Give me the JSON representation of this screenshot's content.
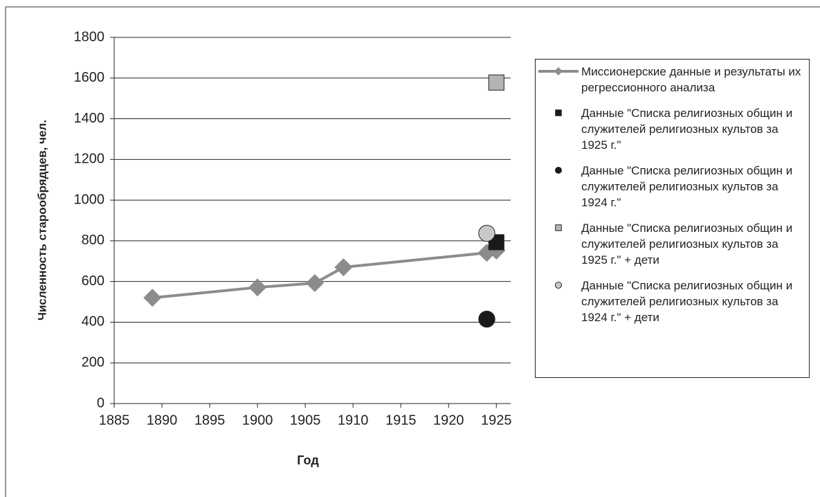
{
  "chart_data": {
    "type": "scatter",
    "xlabel": "Год",
    "ylabel": "Численность старообрядцев, чел.",
    "xlim": [
      1885,
      1926.5
    ],
    "xticks": [
      1885,
      1890,
      1895,
      1900,
      1905,
      1910,
      1915,
      1920,
      1925
    ],
    "ylim": [
      0,
      1800
    ],
    "yticks": [
      0,
      200,
      400,
      600,
      800,
      1000,
      1200,
      1400,
      1600,
      1800
    ],
    "grid": true,
    "legend": "right",
    "series": [
      {
        "name": "Миссионерские данные и результаты их регрессионного анализа",
        "color": "#8c8c8c",
        "marker": "diamond",
        "line": true,
        "x": [
          1889,
          1900,
          1906,
          1909,
          1924,
          1925
        ],
        "values": [
          520,
          571,
          592,
          670,
          741,
          752
        ]
      },
      {
        "name": "Данные \"Списка религиозных общин и служителей религиозных культов за 1925 г.\"",
        "color": "#1a1a1a",
        "marker": "square",
        "line": false,
        "x": [
          1925
        ],
        "values": [
          793
        ]
      },
      {
        "name": "Данные \"Списка религиозных общин и служителей религиозных культов за 1924 г.\"",
        "color": "#1a1a1a",
        "marker": "circle",
        "line": false,
        "x": [
          1924
        ],
        "values": [
          415
        ]
      },
      {
        "name": "Данные \"Списка религиозных общин и служителей религиозных культов за 1925 г.\" + дети",
        "color": "#b4b4b4",
        "marker": "square",
        "line": false,
        "x": [
          1925
        ],
        "values": [
          1578
        ]
      },
      {
        "name": "Данные \"Списка религиозных общин и служителей религиозных культов за 1924 г.\" + дети",
        "color": "#c8c8c8",
        "marker": "circle",
        "line": false,
        "x": [
          1924
        ],
        "values": [
          837
        ]
      }
    ]
  }
}
